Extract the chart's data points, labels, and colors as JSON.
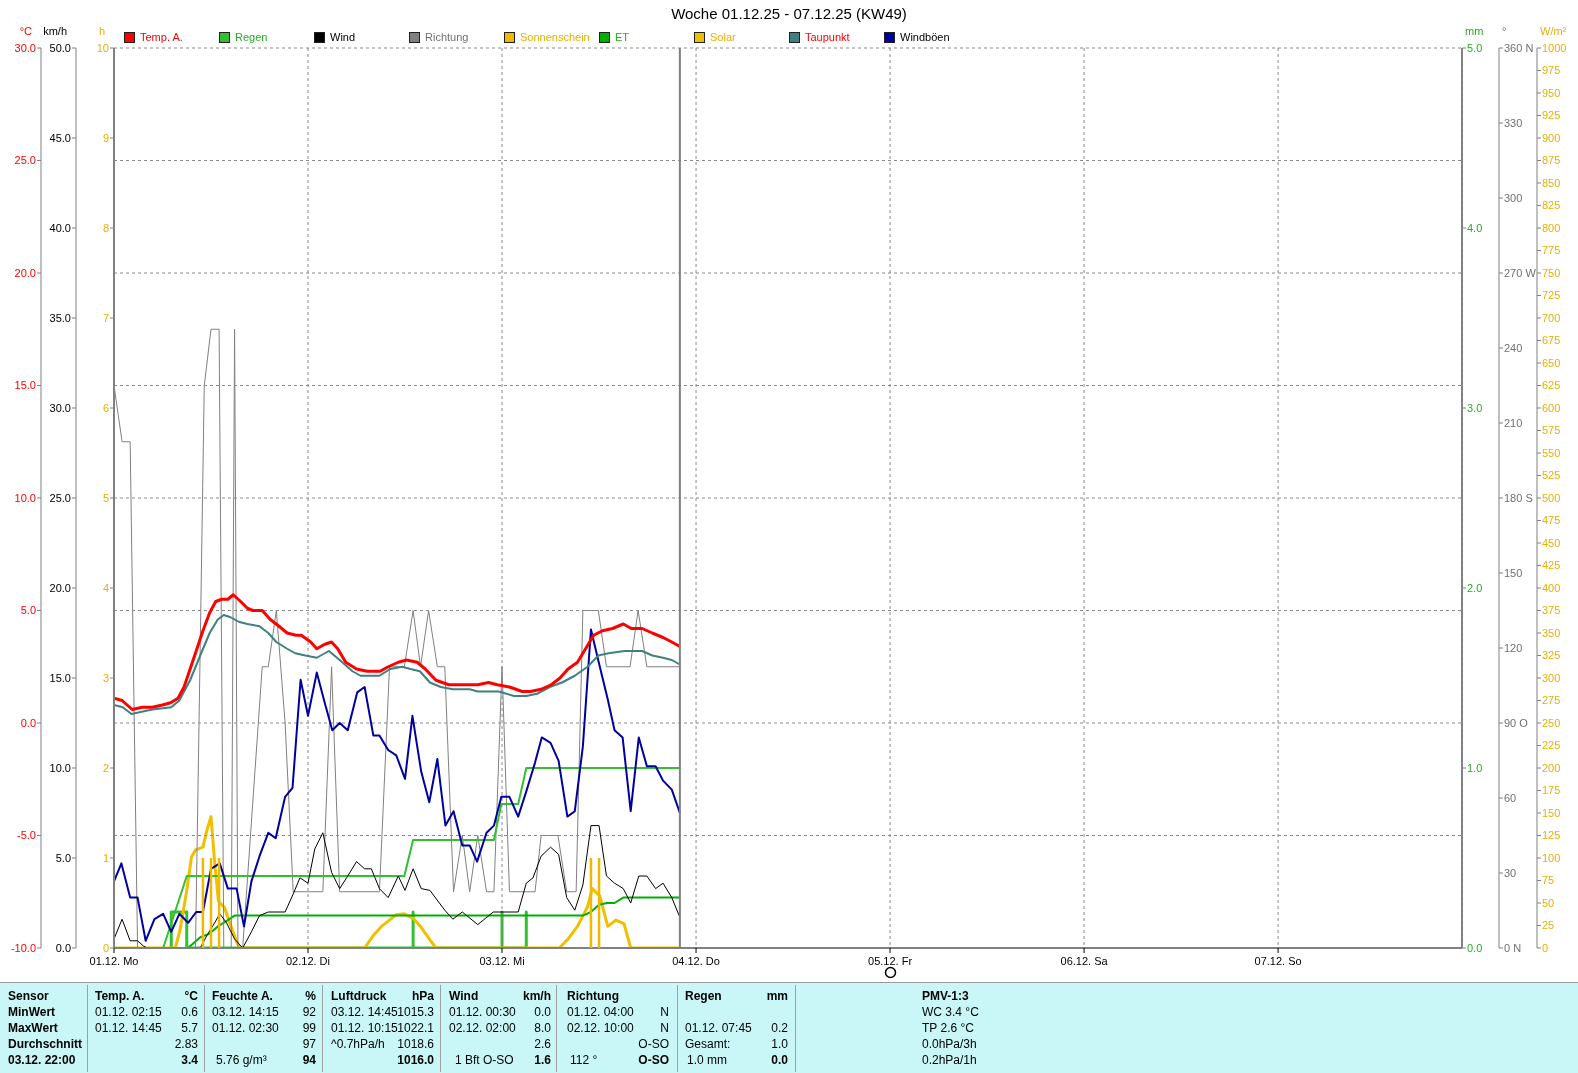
{
  "chart_data": [
    {
      "type": "line",
      "title": "Woche 01.12.25 - 07.12.25 (KW49)",
      "ylabel": "°C",
      "y2label": "km/h",
      "y3label": "h",
      "xlim": [
        "--12-01T00:00",
        "--12-07T22:45"
      ],
      "xticks": [
        {
          "value": "--12-01",
          "label": "01.12. Mo"
        },
        {
          "value": "--12-02",
          "label": "02.12. Di"
        },
        {
          "value": "--12-03",
          "label": "03.12. Mi"
        },
        {
          "value": "--12-04",
          "label": "04.12. Do"
        },
        {
          "value": "--12-05",
          "label": "05.12. Fr"
        },
        {
          "value": "--12-06",
          "label": "06.12. Sa"
        },
        {
          "value": "--12-07",
          "label": "07.12. So"
        }
      ],
      "ylim": [
        -10,
        30
      ],
      "yticks": [
        {
          "value": -10,
          "label": "-10.0"
        },
        {
          "value": -5,
          "label": "-5.0"
        },
        {
          "value": 0,
          "label": "0.0"
        },
        {
          "value": 5,
          "label": "5.0"
        },
        {
          "value": 10,
          "label": "10.0"
        },
        {
          "value": 15,
          "label": "15.0"
        },
        {
          "value": 20,
          "label": "20.0"
        },
        {
          "value": 25,
          "label": "25.0"
        },
        {
          "value": 30,
          "label": "30.0"
        }
      ],
      "y2lim": [
        0,
        50
      ],
      "y2ticks": [
        {
          "value": 0,
          "label": "0.0"
        },
        {
          "value": 5,
          "label": "5.0"
        },
        {
          "value": 10,
          "label": "10.0"
        },
        {
          "value": 15,
          "label": "15.0"
        },
        {
          "value": 20,
          "label": "20.0"
        },
        {
          "value": 25,
          "label": "25.0"
        },
        {
          "value": 30,
          "label": "30.0"
        },
        {
          "value": 35,
          "label": "35.0"
        },
        {
          "value": 40,
          "label": "40.0"
        },
        {
          "value": 45,
          "label": "45.0"
        },
        {
          "value": 50,
          "label": "50.0"
        }
      ],
      "y3lim": [
        0,
        10
      ],
      "y3ticks": [
        0,
        1,
        2,
        3,
        4,
        5,
        6,
        7,
        8,
        9,
        10
      ],
      "grid": true,
      "legend": "top",
      "ref_lines": [
        {
          "axis": "x",
          "value": "--12-03T22:00",
          "color": "#808080"
        }
      ],
      "series": [
        {
          "name": "Temp. A.",
          "color": "#ff0000",
          "type": "line",
          "x": [
            "--12-01T00:00",
            "--12-01T01:00",
            "--12-01T02:15",
            "--12-01T03:30",
            "--12-01T04:45",
            "--12-01T06:00",
            "--12-01T07:00",
            "--12-01T07:55",
            "--12-01T08:40",
            "--12-01T09:25",
            "--12-01T10:10",
            "--12-01T11:00",
            "--12-01T11:50",
            "--12-01T12:35",
            "--12-01T13:20",
            "--12-01T14:05",
            "--12-01T14:45",
            "--12-01T15:40",
            "--12-01T16:30",
            "--12-01T17:10",
            "--12-01T18:20",
            "--12-01T19:20",
            "--12-01T20:25",
            "--12-01T21:25",
            "--12-01T22:30",
            "--12-01T23:10",
            "--12-02T00:20",
            "--12-02T01:05",
            "--12-02T02:05",
            "--12-02T02:55",
            "--12-02T03:40",
            "--12-02T04:40",
            "--12-02T06:00",
            "--12-02T07:20",
            "--12-02T08:55",
            "--12-02T09:55",
            "--12-02T11:10",
            "--12-02T12:10",
            "--12-02T13:30",
            "--12-02T14:30",
            "--12-02T15:50",
            "--12-02T17:25",
            "--12-02T19:10",
            "--12-02T21:00",
            "--12-02T22:20",
            "--12-02T23:25",
            "--12-03T00:55",
            "--12-03T02:30",
            "--12-03T03:30",
            "--12-03T04:50",
            "--12-03T06:05",
            "--12-03T07:10",
            "--12-03T08:10",
            "--12-03T09:20",
            "--12-03T10:20",
            "--12-03T11:20",
            "--12-03T12:25",
            "--12-03T13:40",
            "--12-03T15:00",
            "--12-03T16:00",
            "--12-03T17:20",
            "--12-03T18:35",
            "--12-03T19:55",
            "--12-03T21:00",
            "--12-03T22:00"
          ],
          "values": [
            1.1,
            1.0,
            0.6,
            0.7,
            0.7,
            0.8,
            0.9,
            1.1,
            1.6,
            2.4,
            3.2,
            4.1,
            4.9,
            5.4,
            5.5,
            5.5,
            5.7,
            5.4,
            5.1,
            5.0,
            5.0,
            4.6,
            4.3,
            4.0,
            3.9,
            3.9,
            3.6,
            3.3,
            3.5,
            3.6,
            3.3,
            2.7,
            2.4,
            2.3,
            2.3,
            2.5,
            2.7,
            2.8,
            2.7,
            2.4,
            1.9,
            1.7,
            1.7,
            1.7,
            1.8,
            1.7,
            1.6,
            1.4,
            1.4,
            1.5,
            1.7,
            2.0,
            2.4,
            2.7,
            3.3,
            3.9,
            4.1,
            4.2,
            4.4,
            4.2,
            4.2,
            4.0,
            3.8,
            3.6,
            3.4
          ]
        },
        {
          "name": "Wind",
          "color": "#000000",
          "type": "line",
          "axis": "y2",
          "x": [
            "--12-01T00:00",
            "--12-01T01:00",
            "--12-01T02:00",
            "--12-01T02:55",
            "--12-01T03:40",
            "--12-01T04:10",
            "--12-01T10:40",
            "--12-01T11:30",
            "--12-01T12:35",
            "--12-01T13:05",
            "--12-01T13:55",
            "--12-01T14:55",
            "--12-01T15:55",
            "--12-01T17:00",
            "--12-01T18:00",
            "--12-01T19:05",
            "--12-01T21:10",
            "--12-01T22:10",
            "--12-01T23:00",
            "--12-02T00:00",
            "--12-02T00:50",
            "--12-02T01:50",
            "--12-02T02:55",
            "--12-02T03:55",
            "--12-02T04:55",
            "--12-02T06:00",
            "--12-02T07:00",
            "--12-02T07:50",
            "--12-02T08:50",
            "--12-02T09:55",
            "--12-02T11:10",
            "--12-02T12:00",
            "--12-02T13:00",
            "--12-02T14:00",
            "--12-02T15:05",
            "--12-02T16:55",
            "--12-02T17:55",
            "--12-02T19:05",
            "--12-02T21:00",
            "--12-02T22:55",
            "--12-03T02:00",
            "--12-03T03:00",
            "--12-03T03:50",
            "--12-03T04:50",
            "--12-03T06:00",
            "--12-03T07:00",
            "--12-03T08:00",
            "--12-03T09:00",
            "--12-03T10:00",
            "--12-03T11:00",
            "--12-03T12:00",
            "--12-03T12:55",
            "--12-03T13:55",
            "--12-03T15:00",
            "--12-03T15:55",
            "--12-03T16:55",
            "--12-03T17:55",
            "--12-03T19:00",
            "--12-03T19:55",
            "--12-03T21:00",
            "--12-03T22:00"
          ],
          "values": [
            0.5,
            1.6,
            0.4,
            0.4,
            0.1,
            0,
            0,
            0.7,
            1.5,
            1.9,
            1.4,
            0.5,
            0,
            0.9,
            1.8,
            2.0,
            2.0,
            3.0,
            3.9,
            3.6,
            5.5,
            6.4,
            4.2,
            3.3,
            4.0,
            4.8,
            4.4,
            4.4,
            3.3,
            2.8,
            4.0,
            3.2,
            4.4,
            3.3,
            3.2,
            2.1,
            1.6,
            2.0,
            1.3,
            2.0,
            2.0,
            3.6,
            3.9,
            5.1,
            5.6,
            5.2,
            2.8,
            2.1,
            3.5,
            6.8,
            6.8,
            4.0,
            3.6,
            3.3,
            2.5,
            4.0,
            4.0,
            3.3,
            3.6,
            2.8,
            1.7
          ]
        },
        {
          "name": "Sonnenschein",
          "color": "#f0b800",
          "type": "bar",
          "axis": "y3",
          "x": [
            "--12-01T11:00",
            "--12-01T12:00",
            "--12-01T13:00",
            "--12-03T11:00",
            "--12-03T12:00"
          ],
          "values": [
            1.0,
            1.0,
            1.0,
            1.0,
            1.0
          ]
        },
        {
          "name": "Taupunkt",
          "color": "#408080",
          "type": "line",
          "x": [
            "--12-01T00:00",
            "--12-01T01:05",
            "--12-01T02:10",
            "--12-01T03:25",
            "--12-01T04:45",
            "--12-01T07:05",
            "--12-01T08:05",
            "--12-01T09:25",
            "--12-01T10:40",
            "--12-01T11:50",
            "--12-01T12:50",
            "--12-01T13:35",
            "--12-01T14:25",
            "--12-01T15:25",
            "--12-01T16:30",
            "--12-01T18:00",
            "--12-01T19:05",
            "--12-01T20:05",
            "--12-01T21:25",
            "--12-01T22:25",
            "--12-01T23:40",
            "--12-02T01:05",
            "--12-02T02:35",
            "--12-02T03:55",
            "--12-02T05:30",
            "--12-02T06:30",
            "--12-02T08:50",
            "--12-02T10:10",
            "--12-02T11:40",
            "--12-02T12:40",
            "--12-02T13:50",
            "--12-02T15:05",
            "--12-02T16:25",
            "--12-02T17:55",
            "--12-02T20:00",
            "--12-02T21:00",
            "--12-02T23:35",
            "--12-03T01:30",
            "--12-03T03:00",
            "--12-03T04:20",
            "--12-03T05:55",
            "--12-03T07:25",
            "--12-03T09:00",
            "--12-03T10:35",
            "--12-03T11:55",
            "--12-03T13:10",
            "--12-03T15:10",
            "--12-03T17:20",
            "--12-03T18:35",
            "--12-03T19:55",
            "--12-03T21:00",
            "--12-03T22:00"
          ],
          "values": [
            0.8,
            0.7,
            0.4,
            0.5,
            0.6,
            0.7,
            1.0,
            1.9,
            3.0,
            4.0,
            4.6,
            4.8,
            4.7,
            4.5,
            4.4,
            4.3,
            4.0,
            3.6,
            3.3,
            3.1,
            3.0,
            2.9,
            3.2,
            2.8,
            2.3,
            2.1,
            2.1,
            2.4,
            2.5,
            2.4,
            2.3,
            1.8,
            1.6,
            1.5,
            1.5,
            1.4,
            1.4,
            1.2,
            1.2,
            1.3,
            1.6,
            1.8,
            2.1,
            2.5,
            3.0,
            3.1,
            3.2,
            3.2,
            3.0,
            2.9,
            2.8,
            2.6
          ]
        },
        {
          "name": "Windböen",
          "color": "#0000a0",
          "type": "line",
          "axis": "y2",
          "x": [
            "--12-01T00:00",
            "--12-01T00:55",
            "--12-01T02:00",
            "--12-01T02:55",
            "--12-01T03:55",
            "--12-01T05:00",
            "--12-01T06:05",
            "--12-01T07:05",
            "--12-01T08:05",
            "--12-01T09:10",
            "--12-01T10:10",
            "--12-01T11:00",
            "--12-01T12:00",
            "--12-01T13:05",
            "--12-01T14:05",
            "--12-01T15:10",
            "--12-01T16:05",
            "--12-01T17:00",
            "--12-01T18:00",
            "--12-01T19:05",
            "--12-01T20:00",
            "--12-01T21:10",
            "--12-01T22:05",
            "--12-01T23:05",
            "--12-02T00:00",
            "--12-02T01:05",
            "--12-02T02:05",
            "--12-02T03:00",
            "--12-02T03:55",
            "--12-02T04:55",
            "--12-02T06:05",
            "--12-02T07:00",
            "--12-02T08:05",
            "--12-02T08:50",
            "--12-02T09:55",
            "--12-02T10:55",
            "--12-02T12:00",
            "--12-02T12:55",
            "--12-02T14:00",
            "--12-02T15:00",
            "--12-02T16:00",
            "--12-02T17:00",
            "--12-02T18:00",
            "--12-02T19:05",
            "--12-02T20:00",
            "--12-02T20:55",
            "--12-02T22:05",
            "--12-02T23:00",
            "--12-02T23:55",
            "--12-03T00:55",
            "--12-03T02:00",
            "--12-03T03:00",
            "--12-03T04:05",
            "--12-03T04:55",
            "--12-03T06:00",
            "--12-03T07:00",
            "--12-03T08:05",
            "--12-03T09:00",
            "--12-03T10:00",
            "--12-03T11:00",
            "--12-03T12:00",
            "--12-03T13:05",
            "--12-03T13:55",
            "--12-03T14:55",
            "--12-03T15:55",
            "--12-03T16:55",
            "--12-03T17:55",
            "--12-03T19:00",
            "--12-03T19:55",
            "--12-03T21:00",
            "--12-03T22:00"
          ],
          "values": [
            3.7,
            4.7,
            2.8,
            2.8,
            0.4,
            1.6,
            1.9,
            0.9,
            1.9,
            1.4,
            2.0,
            2.0,
            4.4,
            4.7,
            3.3,
            3.3,
            1.2,
            3.7,
            5.1,
            6.4,
            6.1,
            8.4,
            8.9,
            14.9,
            12.9,
            15.3,
            13.6,
            12.1,
            12.5,
            12.1,
            14.2,
            14.5,
            11.8,
            11.8,
            11.0,
            10.7,
            9.4,
            12.9,
            9.8,
            8.1,
            10.5,
            6.8,
            7.6,
            5.7,
            5.7,
            4.8,
            6.4,
            6.8,
            8.4,
            8.4,
            7.3,
            8.7,
            10.3,
            11.7,
            11.4,
            10.4,
            7.3,
            7.6,
            11.2,
            17.7,
            15.8,
            13.8,
            12.1,
            11.7,
            7.6,
            11.7,
            10.1,
            10.1,
            9.3,
            8.8,
            7.5
          ]
        }
      ]
    },
    {
      "type": "line",
      "ylabel": "mm",
      "y2label": "°",
      "y3label": "W/m²",
      "xlim": [
        "--12-01T00:00",
        "--12-07T22:45"
      ],
      "ylim": [
        0,
        5
      ],
      "yticks": [
        {
          "value": 0,
          "label": "0.0"
        },
        {
          "value": 1,
          "label": "1.0"
        },
        {
          "value": 2,
          "label": "2.0"
        },
        {
          "value": 3,
          "label": "3.0"
        },
        {
          "value": 4,
          "label": "4.0"
        },
        {
          "value": 5,
          "label": "5.0"
        }
      ],
      "y2lim": [
        0,
        360
      ],
      "y2ticks": [
        {
          "value": 0,
          "label": "0 N"
        },
        30,
        60,
        {
          "value": 90,
          "label": "90 O"
        },
        120,
        150,
        {
          "value": 180,
          "label": "180 S"
        },
        210,
        240,
        {
          "value": 270,
          "label": "270 W"
        },
        300,
        330,
        {
          "value": 360,
          "label": "360 N"
        }
      ],
      "y3lim": [
        0,
        1000
      ],
      "y3ticks": [
        0,
        25,
        50,
        75,
        100,
        125,
        150,
        175,
        200,
        225,
        250,
        275,
        300,
        325,
        350,
        375,
        400,
        425,
        450,
        475,
        500,
        525,
        550,
        575,
        600,
        625,
        650,
        675,
        700,
        725,
        750,
        775,
        800,
        825,
        850,
        875,
        900,
        925,
        950,
        975,
        1000
      ],
      "tick_labels": "y",
      "legend": "top",
      "series": [
        {
          "name": "Regen",
          "color": "#30c030",
          "type": "line",
          "x": [
            "--12-01T06:05",
            "--12-01T09:00",
            "--12-02T11:55",
            "--12-02T13:00",
            "--12-02T23:00",
            "--12-02T23:55",
            "--12-03T02:00",
            "--12-03T03:00",
            "--12-03T22:00"
          ],
          "values": [
            0,
            0.4,
            0.4,
            0.6,
            0.6,
            0.8,
            0.8,
            1.0,
            1.0
          ]
        },
        {
          "name": "Richtung",
          "color": "#808080",
          "type": "line",
          "axis": "y2",
          "x": [
            "--12-01T00:00",
            "--12-01T01:00",
            "--12-01T02:00",
            "--12-01T02:55",
            "--12-01T10:05",
            "--12-01T11:10",
            "--12-01T12:00",
            "--12-01T13:00",
            "--12-01T13:35",
            "--12-01T14:30",
            "--12-01T14:55",
            "--12-01T15:20",
            "--12-01T15:55",
            "--12-01T18:20",
            "--12-01T19:05",
            "--12-01T20:05",
            "--12-01T21:10",
            "--12-01T22:10",
            "--12-02T01:50",
            "--12-02T02:55",
            "--12-02T03:55",
            "--12-02T08:50",
            "--12-02T10:05",
            "--12-02T11:55",
            "--12-02T13:00",
            "--12-02T13:55",
            "--12-02T14:55",
            "--12-02T16:00",
            "--12-02T16:55",
            "--12-02T18:00",
            "--12-02T19:05",
            "--12-02T20:00",
            "--12-02T21:00",
            "--12-02T22:05",
            "--12-02T23:00",
            "--12-03T00:00",
            "--12-03T00:55",
            "--12-03T04:05",
            "--12-03T04:50",
            "--12-03T06:55",
            "--12-03T08:00",
            "--12-03T09:10",
            "--12-03T10:00",
            "--12-03T11:55",
            "--12-03T12:55",
            "--12-03T15:50",
            "--12-03T16:50",
            "--12-03T17:55",
            "--12-03T22:00"
          ],
          "values": [
            225,
            202.5,
            202.5,
            0,
            0,
            225,
            247.5,
            247.5,
            0,
            0,
            247.5,
            0,
            0,
            112.5,
            112.5,
            135,
            90,
            22.5,
            22.5,
            112.5,
            22.5,
            22.5,
            112.5,
            112.5,
            135,
            112.5,
            135,
            112.5,
            112.5,
            22.5,
            45,
            22.5,
            45,
            22.5,
            22.5,
            112.5,
            22.5,
            22.5,
            45,
            45,
            22.5,
            22.5,
            135,
            135,
            112.5,
            112.5,
            135,
            112.5,
            112.5
          ]
        },
        {
          "name": "ET",
          "color": "#00b000",
          "type": "line",
          "x": [
            "--12-01T09:10",
            "--12-01T10:40",
            "--12-01T11:50",
            "--12-01T12:50",
            "--12-01T13:55",
            "--12-01T14:55",
            "--12-03T10:00",
            "--12-03T11:00",
            "--12-03T12:00",
            "--12-03T13:00",
            "--12-03T13:55",
            "--12-03T15:00",
            "--12-03T22:00"
          ],
          "values": [
            0,
            0.06,
            0.08,
            0.12,
            0.15,
            0.18,
            0.18,
            0.2,
            0.24,
            0.25,
            0.25,
            0.28,
            0.28
          ]
        },
        {
          "name": "Solar",
          "color": "#f0c000",
          "type": "line",
          "axis": "y3",
          "x": [
            "--12-01T00:00",
            "--12-01T07:35",
            "--12-01T08:10",
            "--12-01T09:00",
            "--12-01T09:35",
            "--12-01T10:05",
            "--12-01T11:00",
            "--12-01T11:30",
            "--12-01T12:00",
            "--12-01T12:30",
            "--12-01T12:55",
            "--12-01T13:40",
            "--12-01T14:10",
            "--12-01T15:10",
            "--12-01T15:35",
            "--12-02T07:00",
            "--12-02T08:05",
            "--12-02T09:05",
            "--12-02T10:05",
            "--12-02T10:55",
            "--12-02T11:55",
            "--12-02T13:00",
            "--12-02T14:00",
            "--12-02T15:05",
            "--12-02T15:50",
            "--12-03T07:05",
            "--12-03T08:10",
            "--12-03T09:20",
            "--12-03T10:35",
            "--12-03T11:10",
            "--12-03T12:05",
            "--12-03T13:05",
            "--12-03T14:05",
            "--12-03T15:05",
            "--12-03T15:55",
            "--12-03T22:00"
          ],
          "values": [
            0,
            0,
            20,
            64,
            101,
            109,
            112,
            131,
            146,
            90,
            52,
            45,
            32,
            7,
            0,
            0,
            14,
            24,
            31,
            37,
            38,
            33,
            23,
            9,
            0,
            0,
            10,
            24,
            46,
            66,
            58,
            24,
            31,
            27,
            0,
            0
          ]
        },
        {
          "color": "#30c030",
          "type": "line",
          "x": [
            "--12-01T07:05",
            "--12-01T07:05",
            "--12-01T09:00",
            "--12-01T09:00",
            "--12-02T13:00",
            "--12-02T13:00",
            "--12-02T13:00",
            "--12-03T00:00",
            "--12-03T00:00",
            "--12-03T00:00",
            "--12-03T03:00",
            "--12-03T03:00",
            "--12-03T03:00"
          ],
          "values": [
            0,
            0.2,
            0.2,
            0,
            0,
            0.2,
            0,
            0,
            0.2,
            0,
            0,
            0.2,
            0
          ]
        }
      ]
    },
    {
      "type": "other",
      "annotations": [
        "Sensor",
        "MinWert",
        "MaxWert",
        "Durchschnitt",
        "03.12. 22:00",
        "Temp. A.",
        "°C",
        "01.12. 02:15",
        "0.6",
        "01.12. 14:45",
        "5.7",
        "2.83",
        "3.4",
        "Feuchte A.",
        "%",
        "03.12. 14:15",
        "92",
        "01.12. 02:30",
        "99",
        "97",
        "5.76 g/m³",
        "94",
        "Luftdruck",
        "hPa",
        "03.12. 14:45",
        "1015.3",
        "01.12. 10:15",
        "1022.1",
        "^0.7hPa/h",
        "1018.6",
        "1016.0",
        "Wind",
        "km/h",
        "01.12. 00:30",
        "0.0",
        "02.12. 02:00",
        "8.0",
        "2.6",
        "1 Bft O-SO",
        "1.6",
        "Richtung",
        "01.12. 04:00",
        "N",
        "02.12. 10:00",
        "N",
        "O-SO",
        "112 °",
        "O-SO",
        "Regen",
        "mm",
        "01.12. 07:45",
        "0.2",
        "Gesamt:",
        "1.0",
        "1.0 mm",
        "0.0",
        "PMV-1:3",
        "WC 3.4 °C",
        "TP 2.6 °C",
        "0.0hPa/3h",
        "0.2hPa/1h"
      ]
    }
  ]
}
